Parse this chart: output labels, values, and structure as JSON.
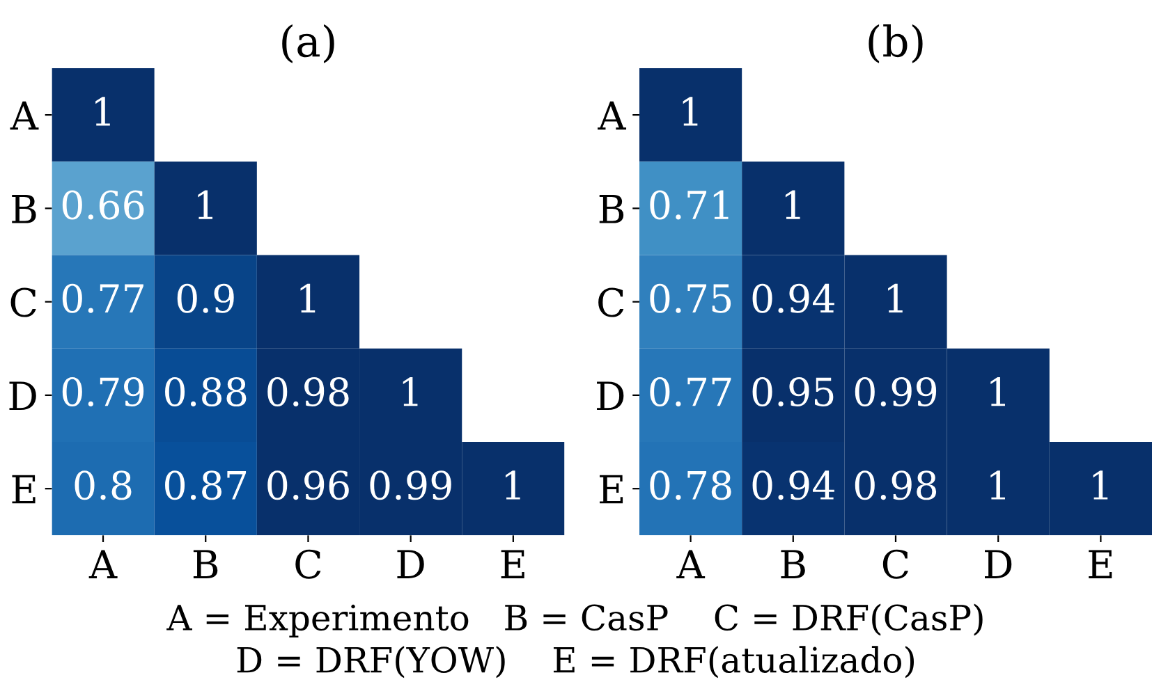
{
  "chart_data": [
    {
      "type": "heatmap",
      "title": "(a)",
      "categories": [
        "A",
        "B",
        "C",
        "D",
        "E"
      ],
      "y_categories": [
        "A",
        "B",
        "C",
        "D",
        "E"
      ],
      "data_labels": true,
      "cells": [
        [
          1,
          null,
          null,
          null,
          null
        ],
        [
          0.66,
          1,
          null,
          null,
          null
        ],
        [
          0.77,
          0.9,
          1,
          null,
          null
        ],
        [
          0.79,
          0.88,
          0.98,
          1,
          null
        ],
        [
          0.8,
          0.87,
          0.96,
          0.99,
          1
        ]
      ]
    },
    {
      "type": "heatmap",
      "title": "(b)",
      "categories": [
        "A",
        "B",
        "C",
        "D",
        "E"
      ],
      "y_categories": [
        "A",
        "B",
        "C",
        "D",
        "E"
      ],
      "data_labels": true,
      "annotations": [
        "A = Experimento   B = CasP    C = DRF(CasP)",
        "D = DRF(YOW)    E = DRF(atualizado)"
      ],
      "cells": [
        [
          1,
          null,
          null,
          null,
          null
        ],
        [
          0.71,
          1,
          null,
          null,
          null
        ],
        [
          0.75,
          0.94,
          1,
          null,
          null
        ],
        [
          0.77,
          0.95,
          0.99,
          1,
          null
        ],
        [
          0.78,
          0.94,
          0.98,
          1,
          1
        ]
      ]
    }
  ]
}
